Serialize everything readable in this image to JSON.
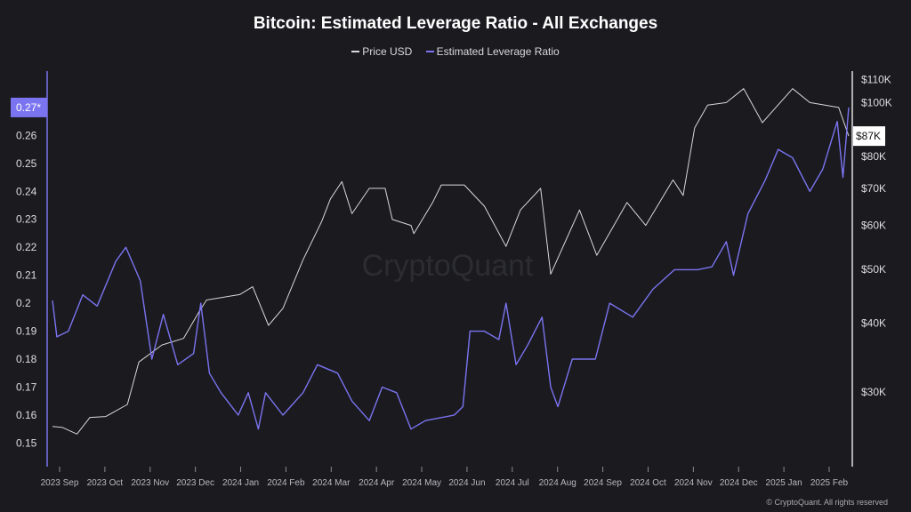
{
  "chart_data": {
    "type": "line",
    "title": "Bitcoin: Estimated Leverage Ratio - All Exchanges",
    "watermark": "CryptoQuant",
    "copyright": "© CryptoQuant. All rights reserved",
    "legend": [
      {
        "name": "Price USD",
        "color": "#d9d9d9"
      },
      {
        "name": "Estimated Leverage Ratio",
        "color": "#7b74f0"
      }
    ],
    "x_ticks": [
      "2023 Sep",
      "2023 Oct",
      "2023 Nov",
      "2023 Dec",
      "2024 Jan",
      "2024 Feb",
      "2024 Mar",
      "2024 Apr",
      "2024 May",
      "2024 Jun",
      "2024 Jul",
      "2024 Aug",
      "2024 Sep",
      "2024 Oct",
      "2024 Nov",
      "2024 Dec",
      "2025 Jan",
      "2025 Feb"
    ],
    "x_range": [
      "2023-08-25",
      "2025-02-28"
    ],
    "y_left": {
      "ticks": [
        0.15,
        0.16,
        0.17,
        0.18,
        0.19,
        0.2,
        0.21,
        0.22,
        0.23,
        0.24,
        0.25,
        0.26
      ],
      "tick_labels": [
        "0.15",
        "0.16",
        "0.17",
        "0.18",
        "0.19",
        "0.2",
        "0.21",
        "0.22",
        "0.23",
        "0.24",
        "0.25",
        "0.26"
      ],
      "range": [
        0.146,
        0.283
      ],
      "current_marker": "0.27*",
      "current_value": 0.27
    },
    "y_right": {
      "scale": "log",
      "ticks": [
        30000,
        40000,
        50000,
        60000,
        70000,
        80000,
        100000,
        110000
      ],
      "tick_labels": [
        "$30K",
        "$40K",
        "$50K",
        "$60K",
        "$70K",
        "$80K",
        "$100K",
        "$110K"
      ],
      "range": [
        22000,
        114000
      ],
      "current_marker": "$87K",
      "current_value": 87000
    },
    "series": [
      {
        "name": "Price USD",
        "color": "#d9d9d9",
        "axis": "right",
        "points": [
          [
            "2023-08-25",
            26000
          ],
          [
            "2023-09-01",
            25900
          ],
          [
            "2023-09-11",
            25200
          ],
          [
            "2023-09-20",
            27000
          ],
          [
            "2023-10-01",
            27100
          ],
          [
            "2023-10-16",
            28500
          ],
          [
            "2023-10-24",
            34000
          ],
          [
            "2023-11-09",
            36500
          ],
          [
            "2023-11-24",
            37500
          ],
          [
            "2023-12-05",
            42000
          ],
          [
            "2023-12-10",
            44000
          ],
          [
            "2024-01-02",
            45000
          ],
          [
            "2024-01-11",
            46500
          ],
          [
            "2024-01-22",
            39600
          ],
          [
            "2024-02-01",
            42500
          ],
          [
            "2024-02-15",
            52000
          ],
          [
            "2024-02-28",
            61000
          ],
          [
            "2024-03-05",
            67000
          ],
          [
            "2024-03-13",
            72000
          ],
          [
            "2024-03-20",
            63000
          ],
          [
            "2024-04-01",
            70000
          ],
          [
            "2024-04-12",
            70000
          ],
          [
            "2024-04-17",
            61500
          ],
          [
            "2024-04-30",
            60000
          ],
          [
            "2024-05-02",
            58000
          ],
          [
            "2024-05-15",
            66000
          ],
          [
            "2024-05-21",
            71000
          ],
          [
            "2024-06-06",
            71000
          ],
          [
            "2024-06-20",
            65000
          ],
          [
            "2024-07-05",
            55000
          ],
          [
            "2024-07-15",
            64000
          ],
          [
            "2024-07-29",
            70000
          ],
          [
            "2024-08-05",
            49000
          ],
          [
            "2024-08-25",
            64000
          ],
          [
            "2024-09-06",
            53000
          ],
          [
            "2024-09-27",
            66000
          ],
          [
            "2024-10-10",
            60000
          ],
          [
            "2024-10-29",
            72500
          ],
          [
            "2024-11-05",
            68000
          ],
          [
            "2024-11-13",
            90000
          ],
          [
            "2024-11-22",
            99000
          ],
          [
            "2024-12-05",
            100000
          ],
          [
            "2024-12-17",
            106000
          ],
          [
            "2024-12-30",
            92000
          ],
          [
            "2025-01-20",
            106000
          ],
          [
            "2025-02-01",
            100000
          ],
          [
            "2025-02-21",
            98000
          ],
          [
            "2025-02-28",
            87000
          ]
        ]
      },
      {
        "name": "Estimated Leverage Ratio",
        "color": "#7b74f0",
        "axis": "left",
        "points": [
          [
            "2023-08-25",
            0.201
          ],
          [
            "2023-08-28",
            0.188
          ],
          [
            "2023-09-05",
            0.19
          ],
          [
            "2023-09-15",
            0.203
          ],
          [
            "2023-09-25",
            0.199
          ],
          [
            "2023-10-08",
            0.215
          ],
          [
            "2023-10-15",
            0.22
          ],
          [
            "2023-10-25",
            0.208
          ],
          [
            "2023-11-02",
            0.18
          ],
          [
            "2023-11-10",
            0.196
          ],
          [
            "2023-11-20",
            0.178
          ],
          [
            "2023-12-01",
            0.182
          ],
          [
            "2023-12-06",
            0.2
          ],
          [
            "2023-12-12",
            0.175
          ],
          [
            "2023-12-20",
            0.168
          ],
          [
            "2024-01-01",
            0.16
          ],
          [
            "2024-01-08",
            0.168
          ],
          [
            "2024-01-15",
            0.155
          ],
          [
            "2024-01-20",
            0.168
          ],
          [
            "2024-02-01",
            0.16
          ],
          [
            "2024-02-15",
            0.168
          ],
          [
            "2024-02-25",
            0.178
          ],
          [
            "2024-03-10",
            0.175
          ],
          [
            "2024-03-20",
            0.165
          ],
          [
            "2024-04-01",
            0.158
          ],
          [
            "2024-04-10",
            0.17
          ],
          [
            "2024-04-20",
            0.168
          ],
          [
            "2024-04-30",
            0.155
          ],
          [
            "2024-05-10",
            0.158
          ],
          [
            "2024-05-30",
            0.16
          ],
          [
            "2024-06-05",
            0.163
          ],
          [
            "2024-06-10",
            0.19
          ],
          [
            "2024-06-20",
            0.19
          ],
          [
            "2024-06-30",
            0.187
          ],
          [
            "2024-07-05",
            0.2
          ],
          [
            "2024-07-12",
            0.178
          ],
          [
            "2024-07-20",
            0.185
          ],
          [
            "2024-07-30",
            0.195
          ],
          [
            "2024-08-05",
            0.17
          ],
          [
            "2024-08-10",
            0.163
          ],
          [
            "2024-08-20",
            0.18
          ],
          [
            "2024-09-05",
            0.18
          ],
          [
            "2024-09-15",
            0.2
          ],
          [
            "2024-10-01",
            0.195
          ],
          [
            "2024-10-15",
            0.205
          ],
          [
            "2024-10-30",
            0.212
          ],
          [
            "2024-11-15",
            0.212
          ],
          [
            "2024-11-25",
            0.213
          ],
          [
            "2024-12-05",
            0.222
          ],
          [
            "2024-12-10",
            0.21
          ],
          [
            "2024-12-20",
            0.232
          ],
          [
            "2025-01-01",
            0.244
          ],
          [
            "2025-01-10",
            0.255
          ],
          [
            "2025-01-20",
            0.252
          ],
          [
            "2025-02-01",
            0.24
          ],
          [
            "2025-02-10",
            0.248
          ],
          [
            "2025-02-20",
            0.265
          ],
          [
            "2025-02-24",
            0.245
          ],
          [
            "2025-02-28",
            0.27
          ]
        ]
      }
    ]
  }
}
